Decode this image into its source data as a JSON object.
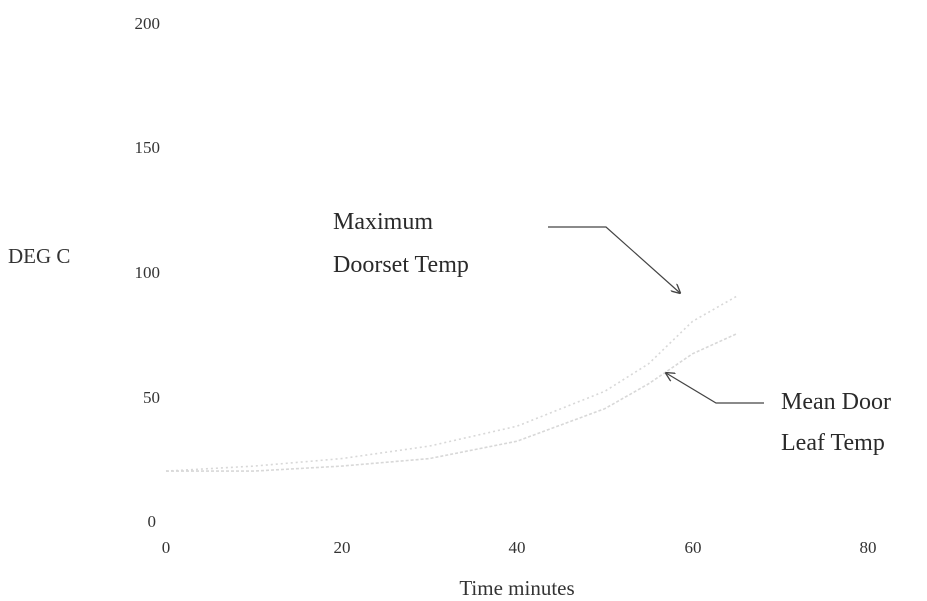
{
  "chart_data": {
    "type": "line",
    "title": "",
    "xlabel": "Time minutes",
    "ylabel": "DEG C",
    "xlim": [
      0,
      80
    ],
    "ylim": [
      0,
      200
    ],
    "x_ticks": [
      "0",
      "20",
      "40",
      "60",
      "80"
    ],
    "y_ticks": [
      "0",
      "50",
      "100",
      "150",
      "200"
    ],
    "grid": false,
    "series": [
      {
        "name": "Maximum Doorset Temp",
        "x": [
          0,
          10,
          20,
          30,
          40,
          50,
          55,
          60,
          65
        ],
        "y": [
          20,
          22,
          25,
          30,
          38,
          52,
          63,
          80,
          90
        ]
      },
      {
        "name": "Mean Door Leaf Temp",
        "x": [
          0,
          10,
          20,
          30,
          40,
          50,
          55,
          60,
          65
        ],
        "y": [
          20,
          20,
          22,
          25,
          32,
          45,
          55,
          67,
          75
        ]
      }
    ],
    "annotations": [
      {
        "lines": [
          "Maximum",
          "Doorset Temp"
        ],
        "target_series": 0
      },
      {
        "lines": [
          "Mean Door",
          "Leaf Temp"
        ],
        "target_series": 1
      }
    ],
    "colors": {
      "curve": "#d8d8d8",
      "text": "#333333",
      "arrow": "#444444"
    }
  }
}
